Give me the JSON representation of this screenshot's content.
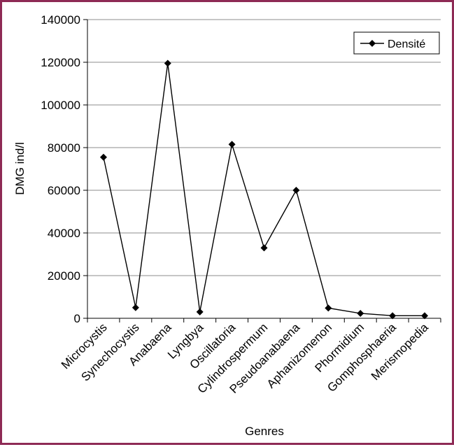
{
  "chart_data": {
    "type": "line",
    "title": "",
    "xlabel": "Genres",
    "ylabel": "DMG ind/l",
    "ylim": [
      0,
      140000
    ],
    "yticks": [
      0,
      20000,
      40000,
      60000,
      80000,
      100000,
      120000,
      140000
    ],
    "grid": true,
    "legend_position": "top-right",
    "categories": [
      "Microcystis",
      "Synechocystis",
      "Anabaena",
      "Lyngbya",
      "Oscillatoria",
      "Cylindrospermum",
      "Pseudoanabaena",
      "Aphanizomenon",
      "Phormidium",
      "Gomphosphaeria",
      "Merismopedia"
    ],
    "series": [
      {
        "name": "Densité",
        "values": [
          75500,
          5000,
          119500,
          3000,
          81500,
          33000,
          60000,
          4800,
          2300,
          1200,
          1200
        ],
        "color": "#000000",
        "marker": "diamond"
      }
    ]
  }
}
